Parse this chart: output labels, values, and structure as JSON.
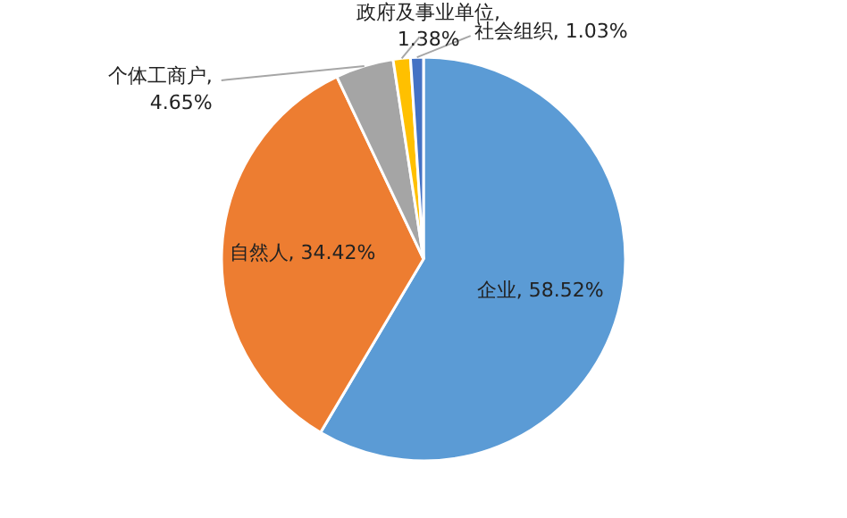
{
  "chart_data": {
    "type": "pie",
    "categories": [
      "企业",
      "自然人",
      "个体工商户",
      "政府及事业单位",
      "社会组织"
    ],
    "values": [
      58.52,
      34.42,
      4.65,
      1.38,
      1.03
    ],
    "colors": [
      "#5b9bd5",
      "#ed7d31",
      "#a5a5a5",
      "#ffc000",
      "#4472c4"
    ],
    "value_labels": [
      ", 58.52%",
      ", 34.42%",
      ",\n4.65%",
      ",\n1.38%",
      ", 1.03%"
    ]
  }
}
